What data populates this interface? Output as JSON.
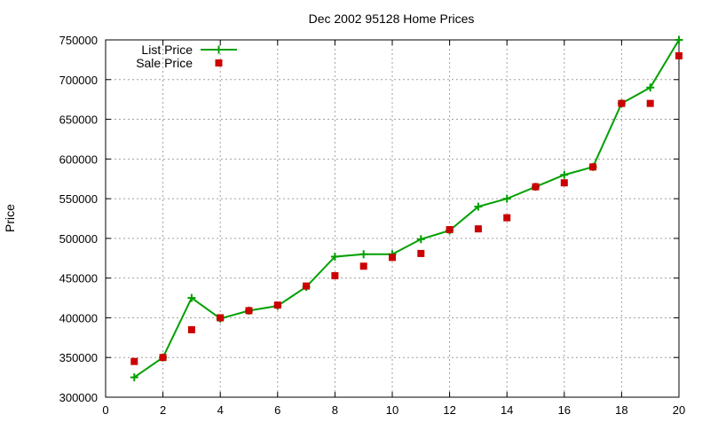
{
  "colors": {
    "list_price": "#00a000",
    "sale_price": "#cc0000",
    "grid": "#a0a0a0",
    "axis": "#000000"
  },
  "chart_data": {
    "type": "line",
    "title": "Dec 2002 95128 Home Prices",
    "xlabel": "",
    "ylabel": "Price",
    "xlim": [
      0,
      20
    ],
    "ylim": [
      300000,
      750000
    ],
    "x_ticks": [
      0,
      2,
      4,
      6,
      8,
      10,
      12,
      14,
      16,
      18,
      20
    ],
    "y_ticks": [
      300000,
      350000,
      400000,
      450000,
      500000,
      550000,
      600000,
      650000,
      700000,
      750000
    ],
    "x_tick_labels": [
      "0",
      "2",
      "4",
      "6",
      "8",
      "10",
      "12",
      "14",
      "16",
      "18",
      "20"
    ],
    "y_tick_labels": [
      "300000",
      "350000",
      "400000",
      "450000",
      "500000",
      "550000",
      "600000",
      "650000",
      "700000",
      "750000"
    ],
    "grid": true,
    "legend_position": "top-left",
    "x": [
      1,
      2,
      3,
      4,
      5,
      6,
      7,
      8,
      9,
      10,
      11,
      12,
      13,
      14,
      15,
      16,
      17,
      18,
      19,
      20
    ],
    "series": [
      {
        "name": "List Price",
        "style": "line-with-plus-markers",
        "color": "#00a000",
        "values": [
          325000,
          350000,
          425000,
          399000,
          409000,
          415000,
          439000,
          477000,
          480000,
          480000,
          499000,
          510000,
          540000,
          550000,
          565000,
          580000,
          590000,
          670000,
          690000,
          750000
        ]
      },
      {
        "name": "Sale Price",
        "style": "square-points",
        "color": "#cc0000",
        "values": [
          345000,
          350000,
          385000,
          400000,
          409000,
          416000,
          440000,
          453000,
          465000,
          476000,
          481000,
          511000,
          512000,
          526000,
          565000,
          570000,
          590000,
          670000,
          670000,
          730000
        ]
      }
    ]
  }
}
